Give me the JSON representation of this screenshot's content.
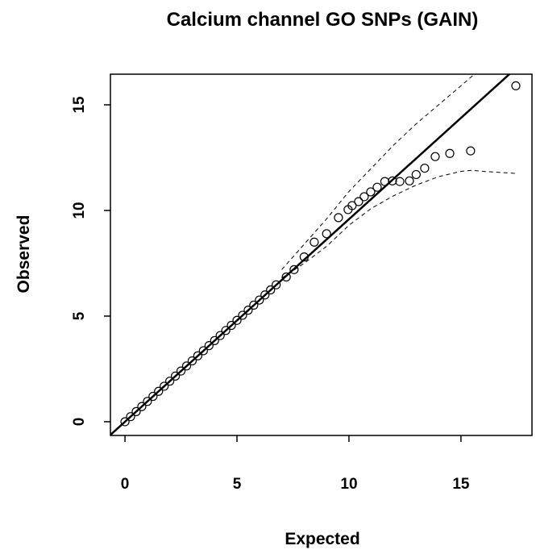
{
  "chart_data": {
    "type": "scatter",
    "title": "Calcium channel GO SNPs (GAIN)",
    "xlabel": "Expected",
    "ylabel": "Observed",
    "xlim": [
      -0.65,
      18.17
    ],
    "ylim": [
      -0.65,
      16.45
    ],
    "xticks": [
      0,
      5,
      10,
      15
    ],
    "yticks": [
      0,
      5,
      10,
      15
    ],
    "color": "#000000",
    "points": {
      "x": [
        0,
        0.25,
        0.5,
        0.75,
        1,
        1.25,
        1.5,
        1.75,
        2,
        2.25,
        2.5,
        2.75,
        3,
        3.25,
        3.5,
        3.75,
        4,
        4.25,
        4.5,
        4.75,
        5,
        5.25,
        5.5,
        5.75,
        6,
        6.25,
        6.5,
        6.75,
        7.2,
        7.55,
        8,
        8.45,
        9,
        9.53,
        9.96,
        10.14,
        10.43,
        10.68,
        10.97,
        11.26,
        11.6,
        11.94,
        12.27,
        12.7,
        13,
        13.38,
        13.85,
        14.5,
        15.43,
        17.45
      ],
      "y": [
        0,
        0.24,
        0.48,
        0.72,
        0.96,
        1.2,
        1.44,
        1.68,
        1.92,
        2.16,
        2.4,
        2.64,
        2.88,
        3.12,
        3.36,
        3.6,
        3.84,
        4.08,
        4.32,
        4.56,
        4.8,
        5.04,
        5.28,
        5.52,
        5.76,
        6,
        6.24,
        6.48,
        6.85,
        7.2,
        7.8,
        8.5,
        8.9,
        9.66,
        10.04,
        10.23,
        10.42,
        10.65,
        10.88,
        11.1,
        11.37,
        11.4,
        11.37,
        11.4,
        11.7,
        12,
        12.55,
        12.7,
        12.82,
        15.9
      ]
    },
    "reference_line": {
      "x": [
        0,
        17.16
      ],
      "y": [
        0,
        16.45
      ]
    },
    "upper_band": {
      "x": [
        7,
        8,
        9,
        10,
        11,
        12,
        13,
        14,
        15,
        15.6
      ],
      "y": [
        7.2,
        8.4,
        9.6,
        10.9,
        12,
        13.1,
        14.1,
        15,
        15.9,
        16.45
      ]
    },
    "lower_band": {
      "x": [
        7,
        8,
        9,
        10,
        11,
        12,
        13,
        14,
        15,
        15.5,
        16,
        17.5
      ],
      "y": [
        6.8,
        7.5,
        8.3,
        9.3,
        10.1,
        10.7,
        11.2,
        11.6,
        11.85,
        11.9,
        11.85,
        11.75
      ]
    }
  }
}
